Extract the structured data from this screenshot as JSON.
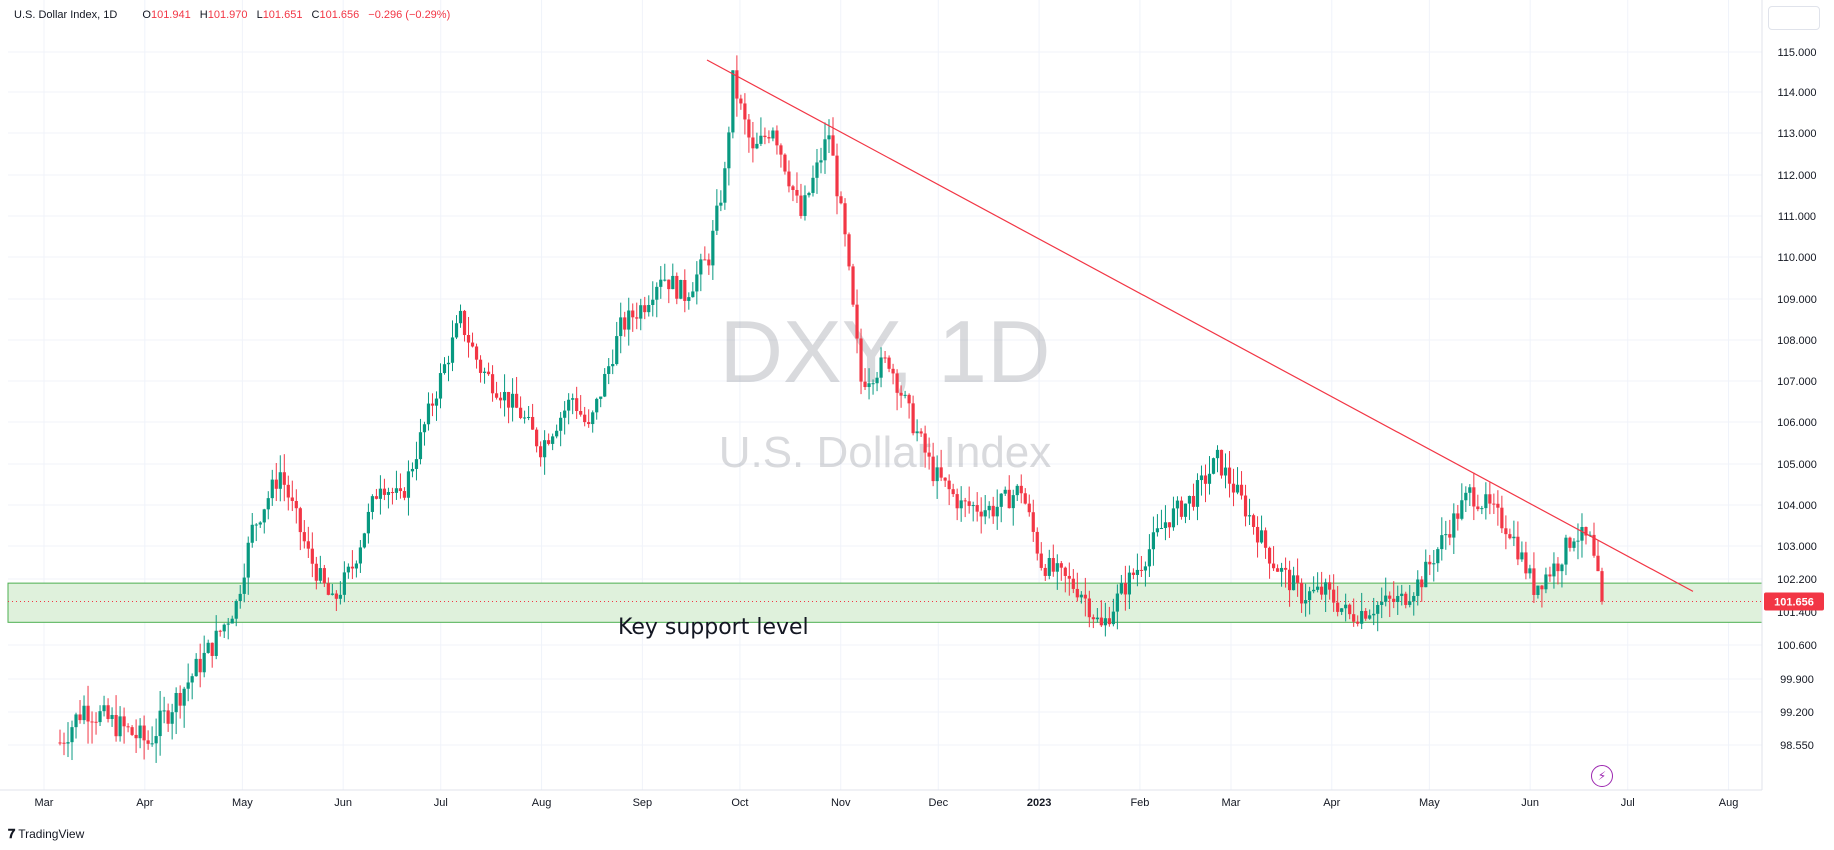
{
  "header": {
    "symbol": "U.S. Dollar Index, 1D",
    "open_label": "O",
    "open": "101.941",
    "high_label": "H",
    "high": "101.970",
    "low_label": "L",
    "low": "101.651",
    "close_label": "C",
    "close": "101.656",
    "change": "−0.296 (−0.29%)"
  },
  "footer": {
    "logo": "𝟕",
    "brand": "TradingView"
  },
  "colors": {
    "up": "#089981",
    "down": "#f23645",
    "trendline": "#f23645",
    "zone_fill": "#dff1dc",
    "zone_border": "#4caf50",
    "last_price_bg": "#f23645"
  },
  "icons": {
    "flash": "lightning-icon"
  },
  "chart_data": {
    "type": "candlestick",
    "watermark_symbol": "DXY, 1D",
    "watermark_name": "U.S. Dollar Index",
    "annotation": "Key support level",
    "y_ticks": [
      115.0,
      114.0,
      113.0,
      112.0,
      111.0,
      110.0,
      109.0,
      108.0,
      107.0,
      106.0,
      105.0,
      104.0,
      103.0,
      102.2,
      101.4,
      100.6,
      99.9,
      99.2,
      98.55
    ],
    "y_tick_labels": [
      "115.000",
      "114.000",
      "113.000",
      "112.000",
      "111.000",
      "110.000",
      "109.000",
      "108.000",
      "107.000",
      "106.000",
      "105.000",
      "104.000",
      "103.000",
      "102.200",
      "101.400",
      "100.600",
      "99.900",
      "99.200",
      "98.550"
    ],
    "x_labels": [
      "Mar",
      "Apr",
      "May",
      "Jun",
      "Jul",
      "Aug",
      "Sep",
      "Oct",
      "Nov",
      "Dec",
      "2023",
      "Feb",
      "Mar",
      "Apr",
      "May",
      "Jun",
      "Jul",
      "Aug"
    ],
    "last_price": 101.656,
    "last_price_label": "101.656",
    "support_zone": [
      101.15,
      102.1
    ],
    "trendline": {
      "start": [
        "2022-09-28",
        114.8
      ],
      "end": [
        "2023-08-05",
        101.9
      ]
    },
    "price_path": [
      [
        0,
        98.6
      ],
      [
        6,
        99.3
      ],
      [
        22,
        98.6
      ],
      [
        38,
        100.6
      ],
      [
        44,
        101.6
      ],
      [
        48,
        103.4
      ],
      [
        55,
        104.8
      ],
      [
        62,
        102.8
      ],
      [
        68,
        101.6
      ],
      [
        73,
        102.5
      ],
      [
        80,
        104.6
      ],
      [
        85,
        104.1
      ],
      [
        92,
        106.2
      ],
      [
        100,
        108.5
      ],
      [
        105,
        107.3
      ],
      [
        115,
        106.2
      ],
      [
        120,
        105.4
      ],
      [
        128,
        106.6
      ],
      [
        132,
        105.8
      ],
      [
        140,
        108.3
      ],
      [
        146,
        108.9
      ],
      [
        150,
        109.6
      ],
      [
        156,
        109.1
      ],
      [
        162,
        110.0
      ],
      [
        166,
        112.0
      ],
      [
        168,
        114.3
      ],
      [
        173,
        112.5
      ],
      [
        178,
        113.2
      ],
      [
        185,
        111.0
      ],
      [
        192,
        113.0
      ],
      [
        196,
        110.4
      ],
      [
        200,
        107.0
      ],
      [
        207,
        107.5
      ],
      [
        212,
        106.2
      ],
      [
        218,
        104.8
      ],
      [
        225,
        104.0
      ],
      [
        233,
        103.9
      ],
      [
        240,
        104.4
      ],
      [
        245,
        102.6
      ],
      [
        255,
        101.9
      ],
      [
        260,
        101.0
      ],
      [
        265,
        101.9
      ],
      [
        270,
        102.6
      ],
      [
        276,
        103.6
      ],
      [
        283,
        104.2
      ],
      [
        289,
        105.1
      ],
      [
        295,
        104.1
      ],
      [
        303,
        102.6
      ],
      [
        310,
        101.8
      ],
      [
        316,
        101.9
      ],
      [
        322,
        101.3
      ],
      [
        330,
        101.6
      ],
      [
        335,
        101.7
      ],
      [
        340,
        102.2
      ],
      [
        346,
        103.3
      ],
      [
        352,
        104.3
      ],
      [
        356,
        104.0
      ],
      [
        362,
        103.4
      ],
      [
        368,
        102.0
      ],
      [
        374,
        102.6
      ],
      [
        378,
        103.3
      ],
      [
        382,
        103.1
      ],
      [
        385,
        101.656
      ]
    ]
  }
}
